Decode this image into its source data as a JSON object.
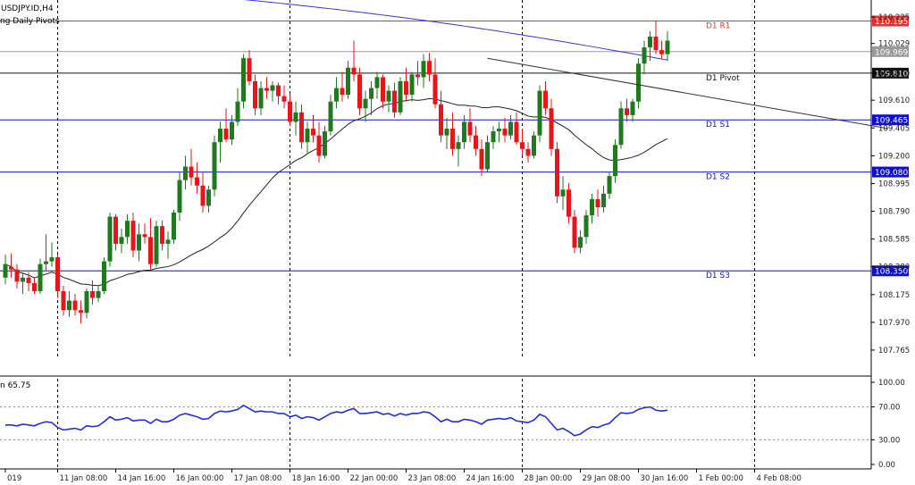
{
  "header": {
    "symbol": "USDJPY.ID,H4",
    "indicator": "ng Daily Pivots"
  },
  "sub_header": {
    "rsi_value": "n 65.75"
  },
  "colors": {
    "bull": "#1f7a1f",
    "bear": "#e8141a",
    "ma_blue": "#3333dd",
    "ma_black": "#222222",
    "pivot_red": "#e83030",
    "pivot_black": "#111111",
    "pivot_blue": "#1010cc",
    "rsi": "#1f2fdd",
    "grid": "#000000"
  },
  "chart_data": [
    {
      "type": "candlestick",
      "title": "USDJPY.ID,H4",
      "ylim": [
        107.58,
        110.35
      ],
      "y_ticks": [
        "110.225",
        "110.029",
        "109.810",
        "109.610",
        "109.405",
        "109.200",
        "108.995",
        "108.790",
        "108.585",
        "108.380",
        "108.175",
        "107.970",
        "107.765"
      ],
      "x_labels": [
        {
          "i": 0,
          "label": "019"
        },
        {
          "i": 9,
          "label": "11 Jan 08:00"
        },
        {
          "i": 19,
          "label": "14 Jan 16:00"
        },
        {
          "i": 29,
          "label": "16 Jan 00:00"
        },
        {
          "i": 39,
          "label": "17 Jan 08:00"
        },
        {
          "i": 49,
          "label": "18 Jan 16:00"
        },
        {
          "i": 59,
          "label": "22 Jan 00:00"
        },
        {
          "i": 69,
          "label": "23 Jan 08:00"
        },
        {
          "i": 79,
          "label": "24 Jan 16:00"
        },
        {
          "i": 89,
          "label": "28 Jan 00:00"
        },
        {
          "i": 99,
          "label": "29 Jan 08:00"
        },
        {
          "i": 109,
          "label": "30 Jan 16:00"
        },
        {
          "i": 119,
          "label": "1 Feb 00:00"
        },
        {
          "i": 129,
          "label": "4 Feb 08:00"
        }
      ],
      "separators": [
        9,
        49,
        89,
        129
      ],
      "levels": [
        {
          "name": "D1 R1",
          "value": 110.195,
          "label": "110.195",
          "color": "#e83030"
        },
        {
          "name": "",
          "value": 109.969,
          "label": "109.969",
          "color": "#9a9a9a"
        },
        {
          "name": "D1 Pivot",
          "value": 109.81,
          "label": "109.810",
          "color": "#111111"
        },
        {
          "name": "D1 S1",
          "value": 109.465,
          "label": "109.465",
          "color": "#1010cc"
        },
        {
          "name": "D1 S2",
          "value": 109.08,
          "label": "109.080",
          "color": "#1010cc"
        },
        {
          "name": "D1 S3",
          "value": 108.35,
          "label": "108.350",
          "color": "#1010cc"
        }
      ],
      "trendline": {
        "from": {
          "i": 83,
          "y": 109.92
        },
        "to": {
          "i": 152,
          "y": 109.4
        }
      },
      "ohlc": [
        [
          108.3,
          108.47,
          108.25,
          108.4
        ],
        [
          108.38,
          108.48,
          108.3,
          108.36
        ],
        [
          108.36,
          108.4,
          108.22,
          108.27
        ],
        [
          108.27,
          108.34,
          108.18,
          108.3
        ],
        [
          108.3,
          108.34,
          108.2,
          108.26
        ],
        [
          108.26,
          108.3,
          108.18,
          108.2
        ],
        [
          108.2,
          108.44,
          108.18,
          108.4
        ],
        [
          108.4,
          108.62,
          108.35,
          108.42
        ],
        [
          108.42,
          108.56,
          108.38,
          108.45
        ],
        [
          108.45,
          108.47,
          108.15,
          108.2
        ],
        [
          108.2,
          108.24,
          108.02,
          108.06
        ],
        [
          108.06,
          108.2,
          108.01,
          108.13
        ],
        [
          108.13,
          108.18,
          108.02,
          108.06
        ],
        [
          108.06,
          108.13,
          107.96,
          108.04
        ],
        [
          108.04,
          108.22,
          108.0,
          108.2
        ],
        [
          108.2,
          108.28,
          108.1,
          108.15
        ],
        [
          108.15,
          108.24,
          108.12,
          108.2
        ],
        [
          108.2,
          108.45,
          108.18,
          108.42
        ],
        [
          108.42,
          108.78,
          108.38,
          108.75
        ],
        [
          108.75,
          108.77,
          108.5,
          108.55
        ],
        [
          108.55,
          108.66,
          108.48,
          108.6
        ],
        [
          108.6,
          108.77,
          108.55,
          108.72
        ],
        [
          108.72,
          108.78,
          108.45,
          108.5
        ],
        [
          108.5,
          108.7,
          108.42,
          108.62
        ],
        [
          108.62,
          108.7,
          108.55,
          108.6
        ],
        [
          108.6,
          108.74,
          108.36,
          108.4
        ],
        [
          108.4,
          108.72,
          108.38,
          108.68
        ],
        [
          108.68,
          108.72,
          108.5,
          108.55
        ],
        [
          108.55,
          108.64,
          108.44,
          108.58
        ],
        [
          108.58,
          108.8,
          108.55,
          108.78
        ],
        [
          108.78,
          109.08,
          108.72,
          109.02
        ],
        [
          109.02,
          109.2,
          108.95,
          109.12
        ],
        [
          109.12,
          109.25,
          108.98,
          109.04
        ],
        [
          109.04,
          109.15,
          108.92,
          108.98
        ],
        [
          108.98,
          109.08,
          108.78,
          108.83
        ],
        [
          108.83,
          108.98,
          108.78,
          108.95
        ],
        [
          108.95,
          109.35,
          108.9,
          109.3
        ],
        [
          109.3,
          109.45,
          109.15,
          109.4
        ],
        [
          109.4,
          109.55,
          109.3,
          109.32
        ],
        [
          109.32,
          109.5,
          109.28,
          109.45
        ],
        [
          109.45,
          109.7,
          109.42,
          109.6
        ],
        [
          109.6,
          109.95,
          109.55,
          109.92
        ],
        [
          109.92,
          109.98,
          109.72,
          109.75
        ],
        [
          109.75,
          109.8,
          109.5,
          109.55
        ],
        [
          109.55,
          109.75,
          109.5,
          109.7
        ],
        [
          109.7,
          109.78,
          109.62,
          109.68
        ],
        [
          109.68,
          109.75,
          109.6,
          109.72
        ],
        [
          109.72,
          109.74,
          109.58,
          109.64
        ],
        [
          109.64,
          109.72,
          109.55,
          109.6
        ],
        [
          109.6,
          109.66,
          109.42,
          109.45
        ],
        [
          109.45,
          109.6,
          109.35,
          109.52
        ],
        [
          109.52,
          109.58,
          109.25,
          109.3
        ],
        [
          109.3,
          109.45,
          109.22,
          109.4
        ],
        [
          109.4,
          109.5,
          109.3,
          109.35
        ],
        [
          109.35,
          109.45,
          109.15,
          109.2
        ],
        [
          109.2,
          109.42,
          109.18,
          109.38
        ],
        [
          109.38,
          109.65,
          109.35,
          109.6
        ],
        [
          109.6,
          109.78,
          109.55,
          109.7
        ],
        [
          109.7,
          109.82,
          109.6,
          109.65
        ],
        [
          109.65,
          109.9,
          109.62,
          109.85
        ],
        [
          109.85,
          110.05,
          109.75,
          109.8
        ],
        [
          109.8,
          109.85,
          109.5,
          109.55
        ],
        [
          109.55,
          109.68,
          109.45,
          109.62
        ],
        [
          109.62,
          109.75,
          109.5,
          109.7
        ],
        [
          109.7,
          109.82,
          109.62,
          109.78
        ],
        [
          109.78,
          109.8,
          109.55,
          109.6
        ],
        [
          109.6,
          109.72,
          109.52,
          109.68
        ],
        [
          109.68,
          109.74,
          109.48,
          109.52
        ],
        [
          109.52,
          109.78,
          109.5,
          109.75
        ],
        [
          109.75,
          109.85,
          109.6,
          109.65
        ],
        [
          109.65,
          109.82,
          109.6,
          109.8
        ],
        [
          109.8,
          109.9,
          109.72,
          109.78
        ],
        [
          109.78,
          109.95,
          109.7,
          109.9
        ],
        [
          109.9,
          109.96,
          109.75,
          109.8
        ],
        [
          109.8,
          109.92,
          109.55,
          109.58
        ],
        [
          109.58,
          109.68,
          109.3,
          109.35
        ],
        [
          109.35,
          109.48,
          109.25,
          109.4
        ],
        [
          109.4,
          109.52,
          109.2,
          109.25
        ],
        [
          109.25,
          109.35,
          109.12,
          109.3
        ],
        [
          109.3,
          109.5,
          109.25,
          109.45
        ],
        [
          109.45,
          109.55,
          109.3,
          109.35
        ],
        [
          109.35,
          109.42,
          109.2,
          109.25
        ],
        [
          109.25,
          109.32,
          109.05,
          109.1
        ],
        [
          109.1,
          109.35,
          109.08,
          109.3
        ],
        [
          109.3,
          109.42,
          109.25,
          109.38
        ],
        [
          109.38,
          109.45,
          109.3,
          109.4
        ],
        [
          109.4,
          109.48,
          109.3,
          109.35
        ],
        [
          109.35,
          109.5,
          109.32,
          109.45
        ],
        [
          109.45,
          109.52,
          109.28,
          109.3
        ],
        [
          109.3,
          109.4,
          109.2,
          109.25
        ],
        [
          109.25,
          109.3,
          109.15,
          109.2
        ],
        [
          109.2,
          109.38,
          109.18,
          109.35
        ],
        [
          109.35,
          109.72,
          109.3,
          109.68
        ],
        [
          109.68,
          109.75,
          109.5,
          109.55
        ],
        [
          109.55,
          109.62,
          109.2,
          109.25
        ],
        [
          109.25,
          109.3,
          108.85,
          108.9
        ],
        [
          108.9,
          109.05,
          108.8,
          108.95
        ],
        [
          108.95,
          109.0,
          108.7,
          108.75
        ],
        [
          108.75,
          108.8,
          108.48,
          108.52
        ],
        [
          108.52,
          108.65,
          108.48,
          108.6
        ],
        [
          108.6,
          108.8,
          108.55,
          108.76
        ],
        [
          108.76,
          108.92,
          108.7,
          108.88
        ],
        [
          108.88,
          108.95,
          108.75,
          108.82
        ],
        [
          108.82,
          108.98,
          108.78,
          108.92
        ],
        [
          108.92,
          109.08,
          108.88,
          109.05
        ],
        [
          109.05,
          109.32,
          109.0,
          109.28
        ],
        [
          109.28,
          109.6,
          109.25,
          109.55
        ],
        [
          109.55,
          109.62,
          109.45,
          109.5
        ],
        [
          109.5,
          109.62,
          109.45,
          109.6
        ],
        [
          109.6,
          109.92,
          109.55,
          109.88
        ],
        [
          109.88,
          110.05,
          109.8,
          110.0
        ],
        [
          110.0,
          110.12,
          109.9,
          110.08
        ],
        [
          110.08,
          110.2,
          109.95,
          109.98
        ],
        [
          109.98,
          110.05,
          109.92,
          109.95
        ],
        [
          109.95,
          110.12,
          109.9,
          110.05
        ]
      ]
    },
    {
      "type": "line",
      "title": "65.75",
      "ylim": [
        0,
        100
      ],
      "y_ticks": [
        "100.00",
        "70.00",
        "30.00",
        "0.00"
      ],
      "levels": [
        70,
        30
      ],
      "series": [
        {
          "values": [
            48,
            48,
            47,
            49,
            48,
            47,
            50,
            52,
            51,
            45,
            42,
            43,
            44,
            42,
            47,
            46,
            47,
            52,
            58,
            54,
            55,
            57,
            53,
            54,
            54,
            50,
            55,
            52,
            52,
            55,
            60,
            62,
            60,
            58,
            55,
            56,
            62,
            65,
            64,
            65,
            67,
            72,
            68,
            64,
            65,
            64,
            64,
            62,
            62,
            58,
            60,
            56,
            58,
            57,
            54,
            58,
            62,
            64,
            63,
            66,
            68,
            62,
            62,
            63,
            64,
            61,
            62,
            59,
            62,
            60,
            62,
            62,
            64,
            63,
            58,
            52,
            55,
            52,
            52,
            55,
            54,
            52,
            49,
            54,
            55,
            56,
            55,
            57,
            53,
            52,
            51,
            54,
            61,
            58,
            50,
            42,
            44,
            40,
            35,
            37,
            42,
            46,
            45,
            48,
            50,
            57,
            63,
            62,
            63,
            67,
            69,
            70,
            66,
            65,
            66
          ]
        }
      ]
    }
  ]
}
